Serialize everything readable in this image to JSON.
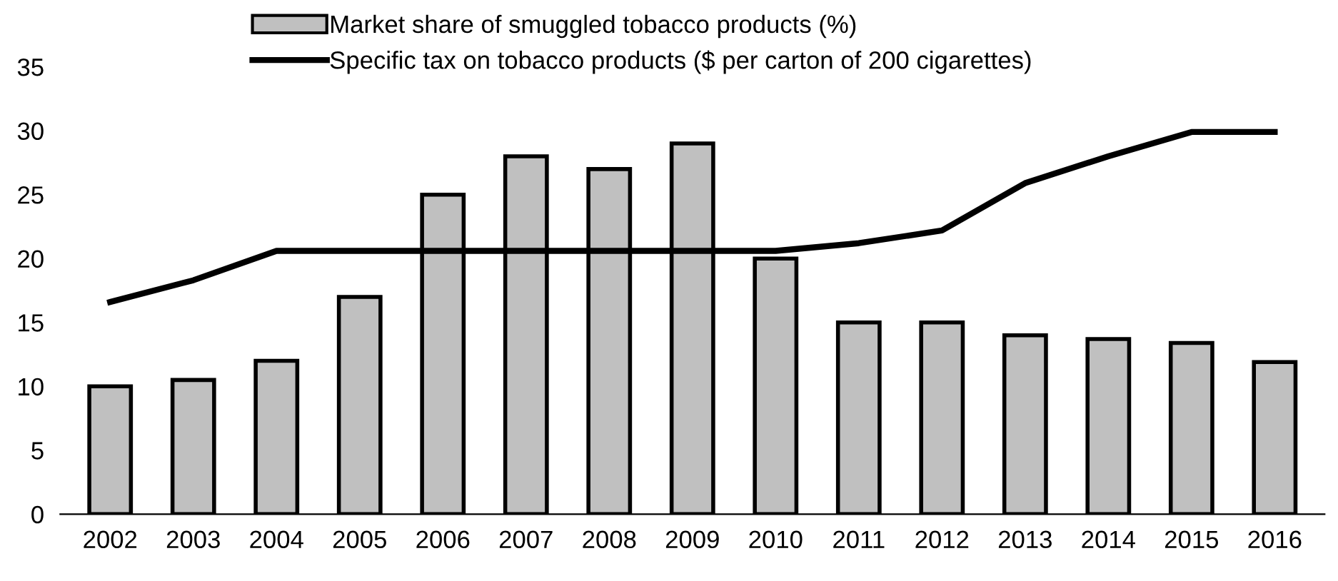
{
  "chart_data": {
    "type": "bar",
    "categories": [
      "2002",
      "2003",
      "2004",
      "2005",
      "2006",
      "2007",
      "2008",
      "2009",
      "2010",
      "2011",
      "2012",
      "2013",
      "2014",
      "2015",
      "2016"
    ],
    "series": [
      {
        "name": "Market share of smuggled tobacco products (%)",
        "color": "#c0c0c0",
        "values": [
          10,
          10.5,
          12,
          17,
          25,
          28,
          27,
          29,
          20,
          15,
          15,
          14,
          13.7,
          13.4,
          11.9
        ]
      },
      {
        "name": "Specific tax on tobacco products ($ per carton of 200 cigarettes)",
        "type": "line",
        "color": "#000000",
        "values": [
          16.6,
          18.3,
          20.6,
          20.6,
          20.6,
          20.6,
          20.6,
          20.6,
          20.6,
          21.2,
          22.2,
          25.9,
          28.0,
          29.9,
          29.9
        ]
      }
    ],
    "ylim": [
      0,
      35
    ],
    "yticks": [
      0,
      5,
      10,
      15,
      20,
      25,
      30,
      35
    ],
    "grid": false,
    "legend": "top",
    "marker": "none",
    "line_style": "solid"
  }
}
